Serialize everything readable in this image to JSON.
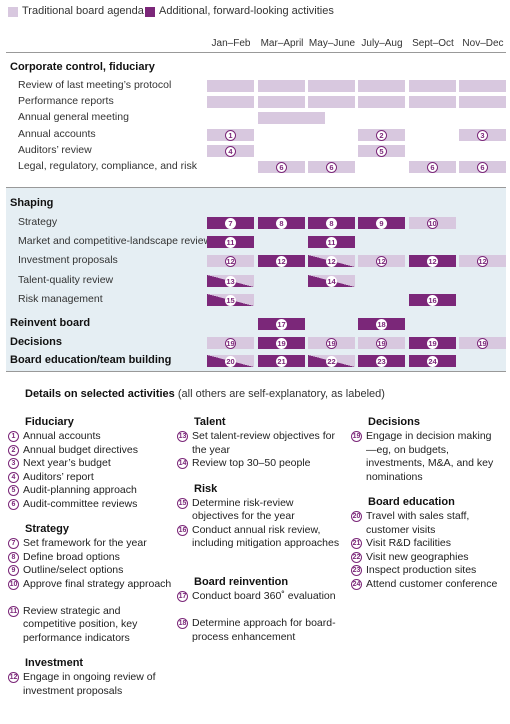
{
  "legend": {
    "traditional": "Traditional board agenda",
    "additional": "Additional, forward-looking activities",
    "colors": {
      "traditional": "#d8c8df",
      "additional": "#7b2779",
      "panel": "#e5eef3"
    }
  },
  "chart_data": {
    "type": "table",
    "months": [
      "Jan–Feb",
      "Mar–April",
      "May–June",
      "July–Aug",
      "Sept–Oct",
      "Nov–Dec"
    ],
    "sections": [
      {
        "name": "Corporate control, fiduciary",
        "bold": true,
        "rows": [
          {
            "label": "Review of last meeting’s protocol",
            "cells": [
              {
                "col": 0,
                "kind": "trad"
              },
              {
                "col": 1,
                "kind": "trad"
              },
              {
                "col": 2,
                "kind": "trad"
              },
              {
                "col": 3,
                "kind": "trad"
              },
              {
                "col": 4,
                "kind": "trad"
              },
              {
                "col": 5,
                "kind": "trad"
              }
            ]
          },
          {
            "label": "Performance reports",
            "cells": [
              {
                "col": 0,
                "kind": "trad"
              },
              {
                "col": 1,
                "kind": "trad"
              },
              {
                "col": 2,
                "kind": "trad"
              },
              {
                "col": 3,
                "kind": "trad"
              },
              {
                "col": 4,
                "kind": "trad"
              },
              {
                "col": 5,
                "kind": "trad"
              }
            ]
          },
          {
            "label": "Annual general meeting",
            "cells": [
              {
                "col": 1,
                "kind": "trad",
                "span": 1.4
              }
            ]
          },
          {
            "label": "Annual accounts",
            "cells": [
              {
                "col": 0,
                "kind": "trad",
                "num": "1"
              },
              {
                "col": 3,
                "kind": "trad",
                "num": "2"
              },
              {
                "col": 5,
                "kind": "trad",
                "num": "3"
              }
            ]
          },
          {
            "label": "Auditors’ review",
            "cells": [
              {
                "col": 0,
                "kind": "trad",
                "num": "4"
              },
              {
                "col": 3,
                "kind": "trad",
                "num": "5"
              }
            ]
          },
          {
            "label": "Legal, regulatory, compliance, and risk",
            "cells": [
              {
                "col": 1,
                "kind": "trad",
                "num": "6"
              },
              {
                "col": 2,
                "kind": "trad",
                "num": "6"
              },
              {
                "col": 4,
                "kind": "trad",
                "num": "6"
              },
              {
                "col": 5,
                "kind": "trad",
                "num": "6"
              }
            ]
          }
        ]
      },
      {
        "name": "Shaping",
        "bold": true,
        "rows": [
          {
            "label": "Strategy",
            "cells": [
              {
                "col": 0,
                "kind": "add",
                "num": "7"
              },
              {
                "col": 1,
                "kind": "add",
                "num": "8"
              },
              {
                "col": 2,
                "kind": "add",
                "num": "8"
              },
              {
                "col": 3,
                "kind": "add",
                "num": "9"
              },
              {
                "col": 4,
                "kind": "trad",
                "num": "10"
              }
            ]
          },
          {
            "label": "Market and competitive-landscape review",
            "cells": [
              {
                "col": 0,
                "kind": "add",
                "num": "11"
              },
              {
                "col": 2,
                "kind": "add",
                "num": "11"
              }
            ]
          },
          {
            "label": "Investment proposals",
            "cells": [
              {
                "col": 0,
                "kind": "trad",
                "num": "12"
              },
              {
                "col": 1,
                "kind": "add",
                "num": "12"
              },
              {
                "col": 2,
                "kind": "half",
                "num": "12"
              },
              {
                "col": 3,
                "kind": "trad",
                "num": "12"
              },
              {
                "col": 4,
                "kind": "add",
                "num": "12"
              },
              {
                "col": 5,
                "kind": "trad",
                "num": "12"
              }
            ]
          },
          {
            "label": "Talent-quality review",
            "cells": [
              {
                "col": 0,
                "kind": "half",
                "num": "13"
              },
              {
                "col": 2,
                "kind": "half",
                "num": "14"
              }
            ]
          },
          {
            "label": "Risk management",
            "cells": [
              {
                "col": 0,
                "kind": "half",
                "num": "15"
              },
              {
                "col": 4,
                "kind": "add",
                "num": "16"
              }
            ]
          }
        ]
      },
      {
        "name": "Reinvent board",
        "bold": true,
        "rows": [
          {
            "label": "",
            "cells": [
              {
                "col": 1,
                "kind": "add",
                "num": "17"
              },
              {
                "col": 3,
                "kind": "add",
                "num": "18"
              }
            ]
          }
        ]
      },
      {
        "name": "Decisions",
        "bold": true,
        "rows": [
          {
            "label": "",
            "cells": [
              {
                "col": 0,
                "kind": "trad",
                "num": "19"
              },
              {
                "col": 1,
                "kind": "add",
                "num": "19"
              },
              {
                "col": 2,
                "kind": "trad",
                "num": "19"
              },
              {
                "col": 3,
                "kind": "trad",
                "num": "19"
              },
              {
                "col": 4,
                "kind": "add",
                "num": "19"
              },
              {
                "col": 5,
                "kind": "trad",
                "num": "19"
              }
            ]
          }
        ]
      },
      {
        "name": "Board education/team building",
        "bold": true,
        "rows": [
          {
            "label": "",
            "cells": [
              {
                "col": 0,
                "kind": "half",
                "num": "20"
              },
              {
                "col": 1,
                "kind": "add",
                "num": "21"
              },
              {
                "col": 2,
                "kind": "half",
                "num": "22"
              },
              {
                "col": 3,
                "kind": "add",
                "num": "23"
              },
              {
                "col": 4,
                "kind": "add",
                "num": "24"
              }
            ]
          }
        ]
      }
    ]
  },
  "details": {
    "title": "Details on selected activities",
    "subtitle": "(all others are self-explanatory, as labeled)",
    "columns": [
      [
        {
          "head": "Fiduciary",
          "items": [
            {
              "n": "1",
              "t": "Annual accounts"
            },
            {
              "n": "2",
              "t": "Annual budget directives"
            },
            {
              "n": "3",
              "t": "Next year’s budget"
            },
            {
              "n": "4",
              "t": "Auditors’ report"
            },
            {
              "n": "5",
              "t": "Audit-planning approach"
            },
            {
              "n": "6",
              "t": "Audit-committee reviews"
            }
          ]
        },
        {
          "head": "Strategy",
          "items": [
            {
              "n": "7",
              "t": "Set framework for the year"
            },
            {
              "n": "8",
              "t": "Define broad options"
            },
            {
              "n": "9",
              "t": "Outline/select options"
            },
            {
              "n": "10",
              "t": "Approve final strategy approach"
            },
            {
              "n": "11",
              "t": "Review strategic and competitive position, key performance indicators"
            }
          ]
        },
        {
          "head": "Investment",
          "items": [
            {
              "n": "12",
              "t": "Engage in ongoing review of investment proposals"
            }
          ]
        }
      ],
      [
        {
          "head": "Talent",
          "items": [
            {
              "n": "13",
              "t": "Set talent-review objectives for the year"
            },
            {
              "n": "14",
              "t": "Review top 30–50 people"
            }
          ]
        },
        {
          "head": "Risk",
          "items": [
            {
              "n": "15",
              "t": "Determine risk-review objectives for the year"
            },
            {
              "n": "16",
              "t": "Conduct annual risk review, including mitigation approaches"
            }
          ]
        },
        {
          "head": "Board reinvention",
          "items": [
            {
              "n": "17",
              "t": "Conduct board 360˚ evaluation"
            },
            {
              "n": "18",
              "t": "Determine approach for board-process enhancement"
            }
          ]
        }
      ],
      [
        {
          "head": "Decisions",
          "items": [
            {
              "n": "19",
              "t": "Engage in decision making—eg, on budgets, investments, M&A, and key nominations"
            }
          ]
        },
        {
          "head": "Board education",
          "items": [
            {
              "n": "20",
              "t": "Travel with sales staff, customer visits"
            },
            {
              "n": "21",
              "t": "Visit R&D facilities"
            },
            {
              "n": "22",
              "t": "Visit new geographies"
            },
            {
              "n": "23",
              "t": "Inspect production sites"
            },
            {
              "n": "24",
              "t": "Attend customer conference"
            }
          ]
        }
      ]
    ]
  }
}
